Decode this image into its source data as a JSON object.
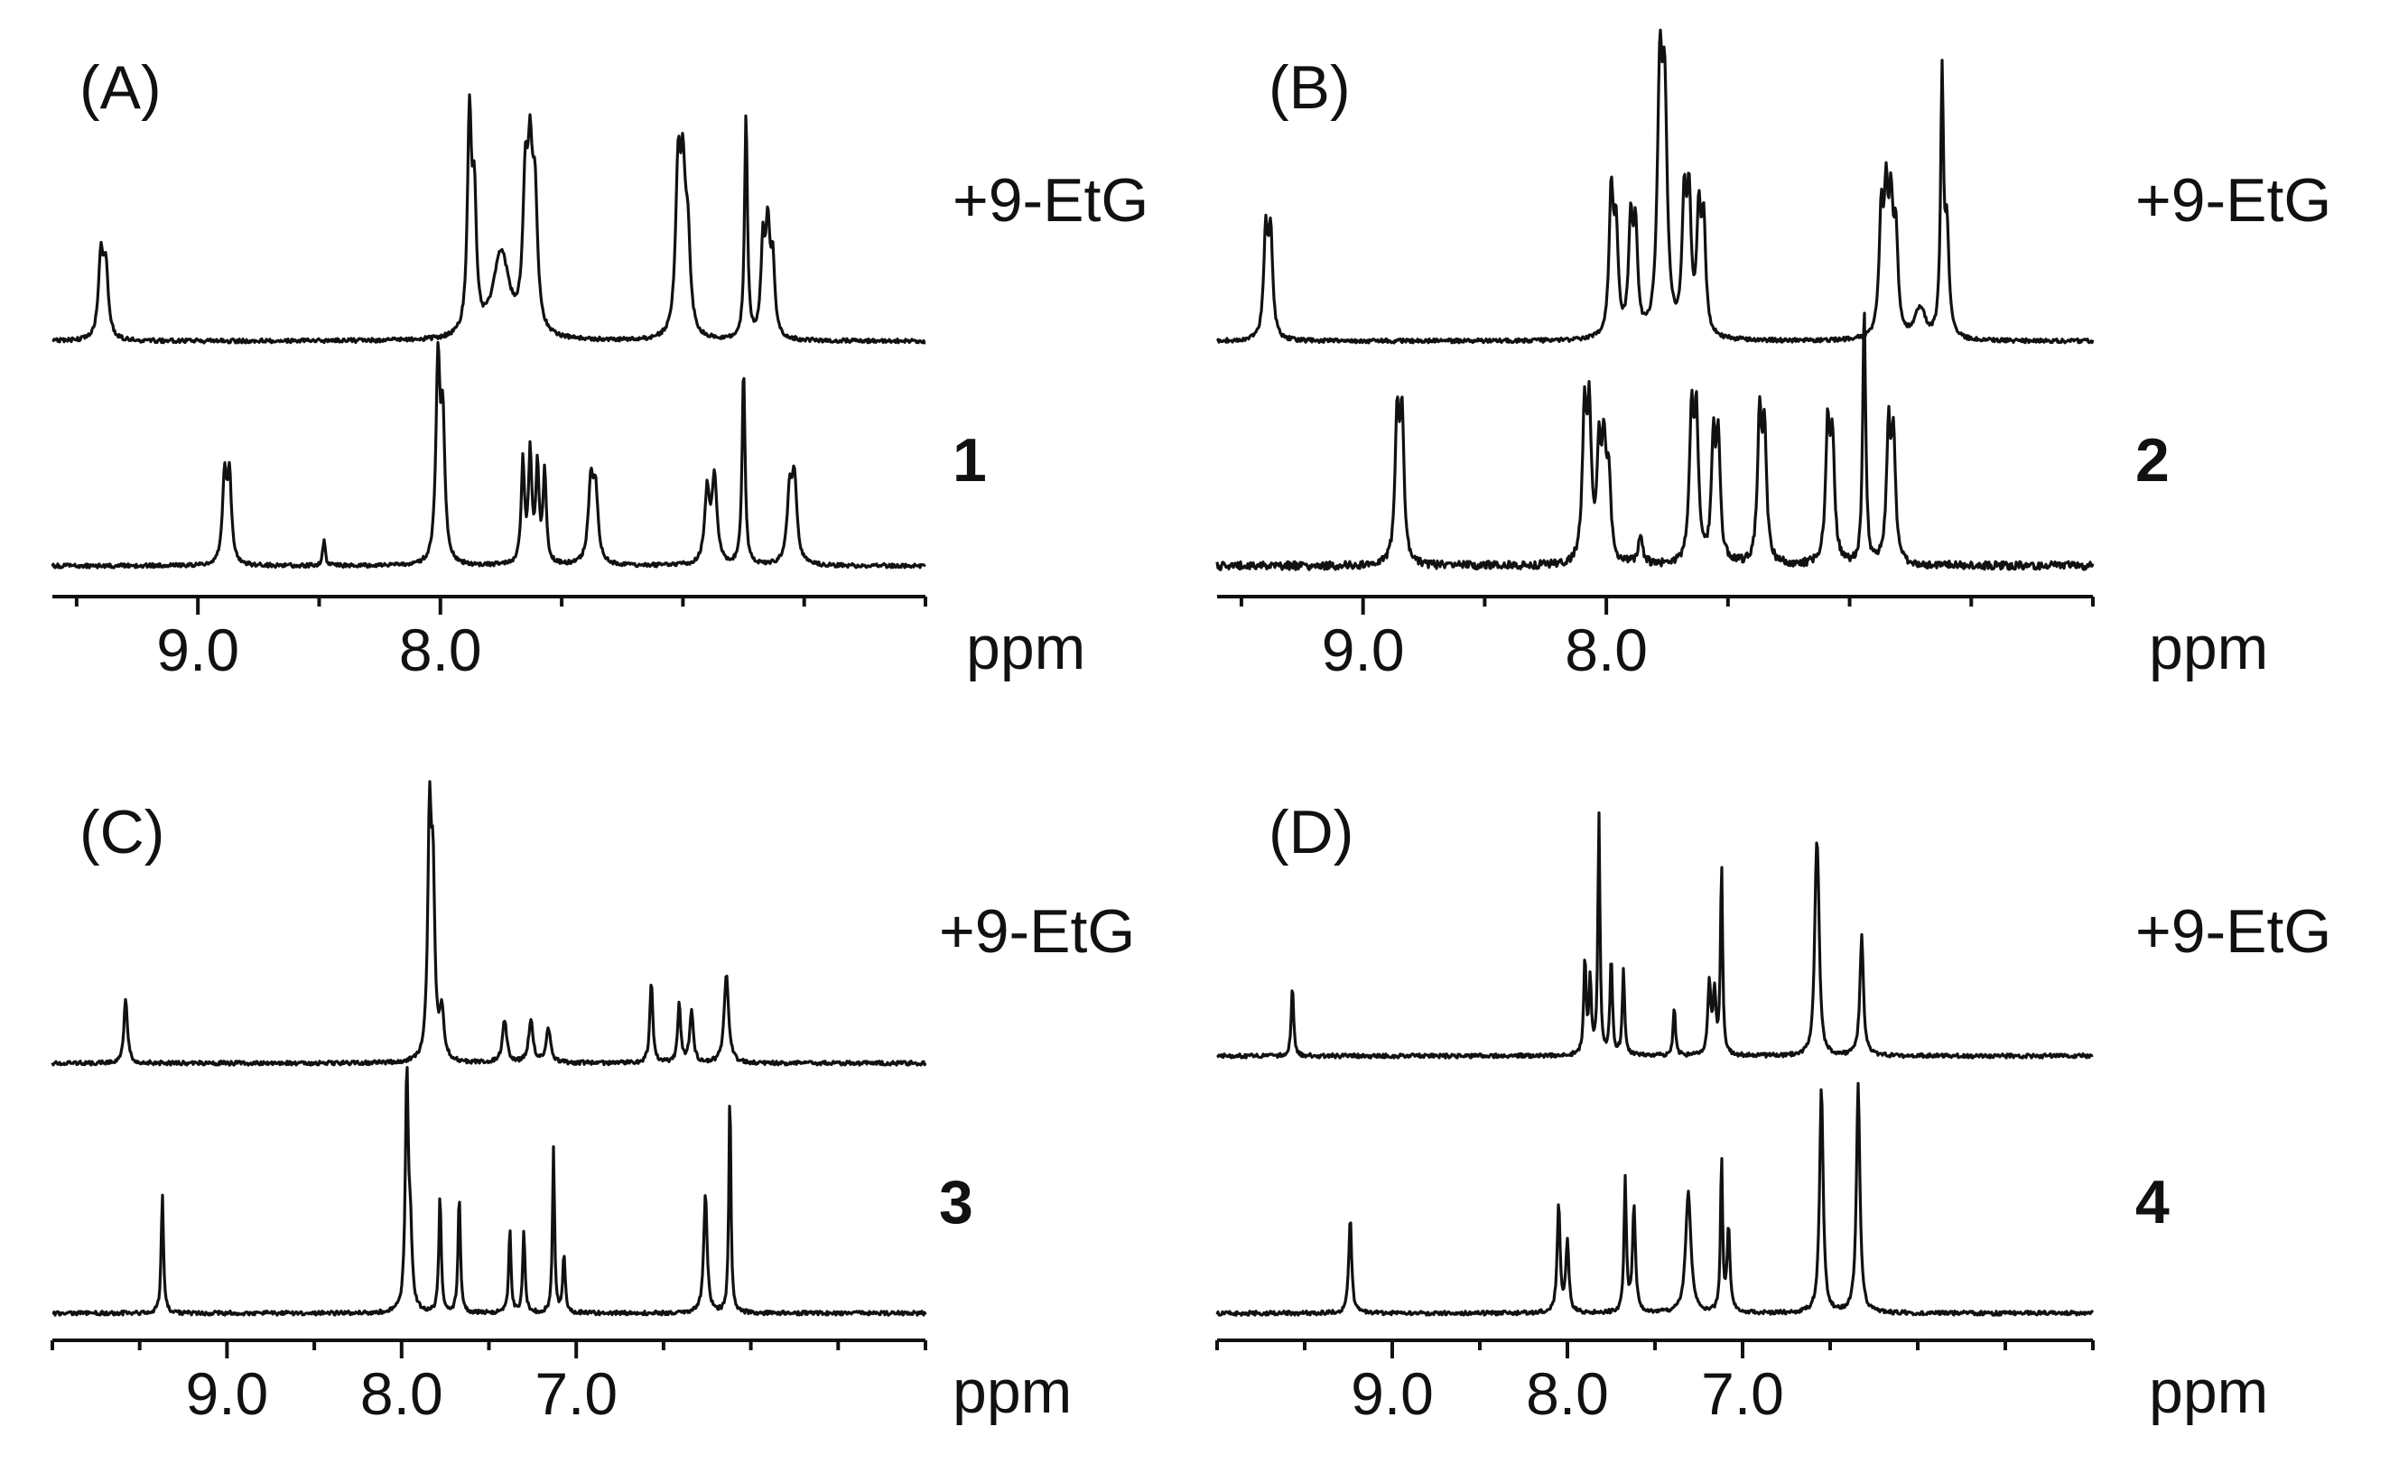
{
  "chart_data": [
    {
      "type": "line",
      "panel_label": "(A)",
      "xlabel": "ppm",
      "xlim": [
        9.6,
        6.0
      ],
      "xticks": [
        9.0,
        8.0
      ],
      "xtick_labels": [
        "9.0",
        "8.0"
      ],
      "series": [
        {
          "name": "+9-EtG",
          "bold": false,
          "peaks": [
            {
              "ppm": 9.4,
              "height": 0.35,
              "width": 0.012
            },
            {
              "ppm": 9.38,
              "height": 0.3,
              "width": 0.012
            },
            {
              "ppm": 7.88,
              "height": 0.95,
              "width": 0.01
            },
            {
              "ppm": 7.86,
              "height": 0.55,
              "width": 0.01
            },
            {
              "ppm": 7.75,
              "height": 0.38,
              "width": 0.04
            },
            {
              "ppm": 7.65,
              "height": 0.6,
              "width": 0.012
            },
            {
              "ppm": 7.63,
              "height": 0.65,
              "width": 0.012
            },
            {
              "ppm": 7.61,
              "height": 0.55,
              "width": 0.012
            },
            {
              "ppm": 7.02,
              "height": 0.7,
              "width": 0.012
            },
            {
              "ppm": 7.0,
              "height": 0.62,
              "width": 0.012
            },
            {
              "ppm": 6.98,
              "height": 0.4,
              "width": 0.012
            },
            {
              "ppm": 6.74,
              "height": 1.0,
              "width": 0.007
            },
            {
              "ppm": 6.67,
              "height": 0.4,
              "width": 0.01
            },
            {
              "ppm": 6.65,
              "height": 0.45,
              "width": 0.01
            },
            {
              "ppm": 6.63,
              "height": 0.32,
              "width": 0.01
            }
          ]
        },
        {
          "name": "1",
          "bold": true,
          "peaks": [
            {
              "ppm": 8.89,
              "height": 0.38,
              "width": 0.01
            },
            {
              "ppm": 8.87,
              "height": 0.38,
              "width": 0.01
            },
            {
              "ppm": 8.48,
              "height": 0.12,
              "width": 0.006
            },
            {
              "ppm": 8.01,
              "height": 0.88,
              "width": 0.01
            },
            {
              "ppm": 7.99,
              "height": 0.6,
              "width": 0.01
            },
            {
              "ppm": 7.66,
              "height": 0.45,
              "width": 0.008
            },
            {
              "ppm": 7.63,
              "height": 0.48,
              "width": 0.008
            },
            {
              "ppm": 7.6,
              "height": 0.42,
              "width": 0.008
            },
            {
              "ppm": 7.57,
              "height": 0.4,
              "width": 0.008
            },
            {
              "ppm": 7.38,
              "height": 0.35,
              "width": 0.012
            },
            {
              "ppm": 7.36,
              "height": 0.3,
              "width": 0.012
            },
            {
              "ppm": 6.9,
              "height": 0.32,
              "width": 0.012
            },
            {
              "ppm": 6.87,
              "height": 0.38,
              "width": 0.012
            },
            {
              "ppm": 6.75,
              "height": 0.88,
              "width": 0.007
            },
            {
              "ppm": 6.56,
              "height": 0.3,
              "width": 0.012
            },
            {
              "ppm": 6.54,
              "height": 0.36,
              "width": 0.012
            }
          ]
        }
      ]
    },
    {
      "type": "line",
      "panel_label": "(B)",
      "xlabel": "ppm",
      "xlim": [
        9.6,
        6.0
      ],
      "xticks": [
        9.0,
        8.0
      ],
      "xtick_labels": [
        "9.0",
        "8.0"
      ],
      "series": [
        {
          "name": "+9-EtG",
          "bold": false,
          "peaks": [
            {
              "ppm": 9.4,
              "height": 0.4,
              "width": 0.01
            },
            {
              "ppm": 9.38,
              "height": 0.4,
              "width": 0.01
            },
            {
              "ppm": 7.98,
              "height": 0.55,
              "width": 0.01
            },
            {
              "ppm": 7.96,
              "height": 0.4,
              "width": 0.01
            },
            {
              "ppm": 7.9,
              "height": 0.42,
              "width": 0.01
            },
            {
              "ppm": 7.88,
              "height": 0.4,
              "width": 0.01
            },
            {
              "ppm": 7.78,
              "height": 0.95,
              "width": 0.012
            },
            {
              "ppm": 7.76,
              "height": 0.85,
              "width": 0.012
            },
            {
              "ppm": 7.68,
              "height": 0.5,
              "width": 0.01
            },
            {
              "ppm": 7.66,
              "height": 0.5,
              "width": 0.01
            },
            {
              "ppm": 7.62,
              "height": 0.45,
              "width": 0.01
            },
            {
              "ppm": 7.6,
              "height": 0.42,
              "width": 0.01
            },
            {
              "ppm": 6.87,
              "height": 0.45,
              "width": 0.01
            },
            {
              "ppm": 6.85,
              "height": 0.48,
              "width": 0.01
            },
            {
              "ppm": 6.83,
              "height": 0.45,
              "width": 0.01
            },
            {
              "ppm": 6.81,
              "height": 0.38,
              "width": 0.01
            },
            {
              "ppm": 6.71,
              "height": 0.12,
              "width": 0.025
            },
            {
              "ppm": 6.62,
              "height": 1.0,
              "width": 0.007
            },
            {
              "ppm": 6.6,
              "height": 0.4,
              "width": 0.01
            }
          ]
        },
        {
          "name": "2",
          "bold": true,
          "peaks": [
            {
              "ppm": 8.86,
              "height": 0.55,
              "width": 0.01
            },
            {
              "ppm": 8.84,
              "height": 0.55,
              "width": 0.01
            },
            {
              "ppm": 8.09,
              "height": 0.55,
              "width": 0.01
            },
            {
              "ppm": 8.07,
              "height": 0.55,
              "width": 0.01
            },
            {
              "ppm": 8.03,
              "height": 0.4,
              "width": 0.01
            },
            {
              "ppm": 8.01,
              "height": 0.42,
              "width": 0.01
            },
            {
              "ppm": 7.99,
              "height": 0.3,
              "width": 0.01
            },
            {
              "ppm": 7.86,
              "height": 0.12,
              "width": 0.01
            },
            {
              "ppm": 7.65,
              "height": 0.55,
              "width": 0.01
            },
            {
              "ppm": 7.63,
              "height": 0.55,
              "width": 0.01
            },
            {
              "ppm": 7.56,
              "height": 0.45,
              "width": 0.01
            },
            {
              "ppm": 7.54,
              "height": 0.45,
              "width": 0.01
            },
            {
              "ppm": 7.37,
              "height": 0.55,
              "width": 0.01
            },
            {
              "ppm": 7.35,
              "height": 0.5,
              "width": 0.01
            },
            {
              "ppm": 7.09,
              "height": 0.52,
              "width": 0.01
            },
            {
              "ppm": 7.07,
              "height": 0.45,
              "width": 0.01
            },
            {
              "ppm": 6.94,
              "height": 1.0,
              "width": 0.007
            },
            {
              "ppm": 6.84,
              "height": 0.5,
              "width": 0.01
            },
            {
              "ppm": 6.82,
              "height": 0.48,
              "width": 0.01
            }
          ]
        }
      ]
    },
    {
      "type": "line",
      "panel_label": "(C)",
      "xlabel": "ppm",
      "xlim": [
        10.0,
        5.0
      ],
      "xticks": [
        9.0,
        8.0,
        7.0
      ],
      "xtick_labels": [
        "9.0",
        "8.0",
        "7.0"
      ],
      "series": [
        {
          "name": "+9-EtG",
          "bold": false,
          "peaks": [
            {
              "ppm": 9.58,
              "height": 0.28,
              "width": 0.012
            },
            {
              "ppm": 7.84,
              "height": 1.0,
              "width": 0.012
            },
            {
              "ppm": 7.82,
              "height": 0.7,
              "width": 0.012
            },
            {
              "ppm": 7.77,
              "height": 0.2,
              "width": 0.015
            },
            {
              "ppm": 7.41,
              "height": 0.18,
              "width": 0.015
            },
            {
              "ppm": 7.26,
              "height": 0.18,
              "width": 0.015
            },
            {
              "ppm": 7.16,
              "height": 0.15,
              "width": 0.015
            },
            {
              "ppm": 6.57,
              "height": 0.35,
              "width": 0.01
            },
            {
              "ppm": 6.41,
              "height": 0.25,
              "width": 0.01
            },
            {
              "ppm": 6.34,
              "height": 0.22,
              "width": 0.012
            },
            {
              "ppm": 6.14,
              "height": 0.38,
              "width": 0.015
            }
          ]
        },
        {
          "name": "3",
          "bold": true,
          "peaks": [
            {
              "ppm": 9.37,
              "height": 0.5,
              "width": 0.008
            },
            {
              "ppm": 7.97,
              "height": 1.0,
              "width": 0.01
            },
            {
              "ppm": 7.95,
              "height": 0.3,
              "width": 0.012
            },
            {
              "ppm": 7.78,
              "height": 0.5,
              "width": 0.008
            },
            {
              "ppm": 7.67,
              "height": 0.5,
              "width": 0.008
            },
            {
              "ppm": 7.38,
              "height": 0.35,
              "width": 0.008
            },
            {
              "ppm": 7.3,
              "height": 0.35,
              "width": 0.008
            },
            {
              "ppm": 7.13,
              "height": 0.7,
              "width": 0.007
            },
            {
              "ppm": 7.07,
              "height": 0.25,
              "width": 0.008
            },
            {
              "ppm": 6.26,
              "height": 0.5,
              "width": 0.012
            },
            {
              "ppm": 6.12,
              "height": 0.95,
              "width": 0.007
            }
          ]
        }
      ]
    },
    {
      "type": "line",
      "panel_label": "(D)",
      "xlabel": "ppm",
      "xlim": [
        10.0,
        5.0
      ],
      "xticks": [
        9.0,
        8.0,
        7.0
      ],
      "xtick_labels": [
        "9.0",
        "8.0",
        "7.0"
      ],
      "series": [
        {
          "name": "+9-EtG",
          "bold": false,
          "peaks": [
            {
              "ppm": 9.57,
              "height": 0.3,
              "width": 0.008
            },
            {
              "ppm": 7.9,
              "height": 0.4,
              "width": 0.008
            },
            {
              "ppm": 7.87,
              "height": 0.3,
              "width": 0.008
            },
            {
              "ppm": 7.82,
              "height": 1.0,
              "width": 0.007
            },
            {
              "ppm": 7.75,
              "height": 0.4,
              "width": 0.008
            },
            {
              "ppm": 7.68,
              "height": 0.35,
              "width": 0.008
            },
            {
              "ppm": 7.39,
              "height": 0.2,
              "width": 0.008
            },
            {
              "ppm": 7.19,
              "height": 0.3,
              "width": 0.01
            },
            {
              "ppm": 7.16,
              "height": 0.25,
              "width": 0.01
            },
            {
              "ppm": 7.12,
              "height": 0.8,
              "width": 0.007
            },
            {
              "ppm": 6.58,
              "height": 0.55,
              "width": 0.012
            },
            {
              "ppm": 6.57,
              "height": 0.5,
              "width": 0.012
            },
            {
              "ppm": 6.32,
              "height": 0.5,
              "width": 0.012
            }
          ]
        },
        {
          "name": "4",
          "bold": true,
          "peaks": [
            {
              "ppm": 9.24,
              "height": 0.4,
              "width": 0.01
            },
            {
              "ppm": 8.05,
              "height": 0.45,
              "width": 0.01
            },
            {
              "ppm": 8.0,
              "height": 0.3,
              "width": 0.01
            },
            {
              "ppm": 7.67,
              "height": 0.55,
              "width": 0.008
            },
            {
              "ppm": 7.62,
              "height": 0.45,
              "width": 0.01
            },
            {
              "ppm": 7.31,
              "height": 0.5,
              "width": 0.018
            },
            {
              "ppm": 7.12,
              "height": 0.65,
              "width": 0.007
            },
            {
              "ppm": 7.08,
              "height": 0.35,
              "width": 0.01
            },
            {
              "ppm": 6.55,
              "height": 0.95,
              "width": 0.012
            },
            {
              "ppm": 6.34,
              "height": 0.95,
              "width": 0.012
            }
          ]
        }
      ]
    }
  ]
}
